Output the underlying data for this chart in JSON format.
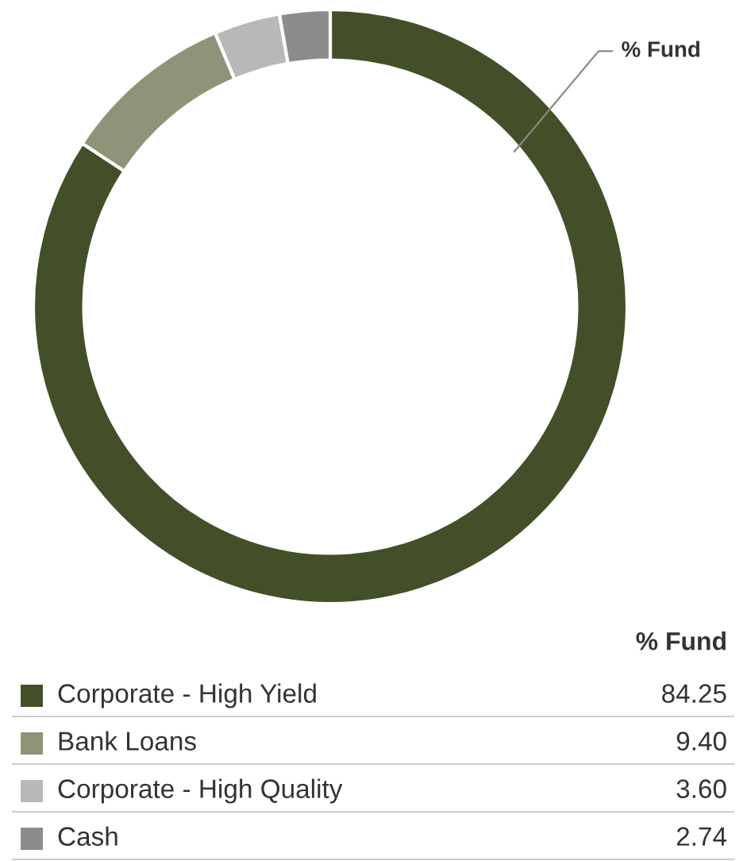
{
  "chart_data": {
    "type": "donut",
    "categories": [
      "Corporate - High Yield",
      "Bank Loans",
      "Corporate - High Quality",
      "Cash"
    ],
    "values": [
      84.25,
      9.4,
      3.6,
      2.74
    ],
    "colors": [
      "#434f28",
      "#8f9479",
      "#b8b8b8",
      "#8c8c8c"
    ],
    "legend": "bottom",
    "legend_title": "% Fund",
    "value_labels": [
      "84.25",
      "9.40",
      "3.60",
      "2.74"
    ],
    "annotations": [
      "% Fund"
    ]
  }
}
